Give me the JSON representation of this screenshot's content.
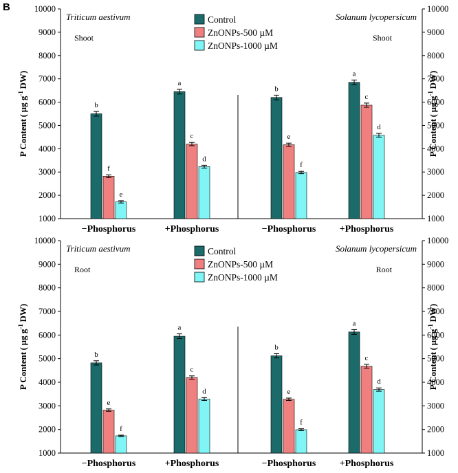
{
  "figure": {
    "panel_label": "B"
  },
  "colors": {
    "Control": "#1b6b6b",
    "ZnONPs-500 µM": "#f08080",
    "ZnONPs-1000 µM": "#7ff5f5"
  },
  "chart_data": [
    {
      "type": "bar",
      "title": "Shoot",
      "organ": "Shoot",
      "species": [
        "Triticum aestivum",
        "Solanum lycopersicum"
      ],
      "categories": [
        "−Phosphorus",
        "+Phosphorus",
        "−Phosphorus",
        "+Phosphorus"
      ],
      "ylabel": "P Content (µg g⁻¹ DW)",
      "ylabel_parts": {
        "main": "P Content ( µg g",
        "sup": "-1",
        "tail": " DW)"
      },
      "ylim": [
        1000,
        10000
      ],
      "yticks": [
        1000,
        2000,
        3000,
        4000,
        5000,
        6000,
        7000,
        8000,
        9000,
        10000
      ],
      "legend": [
        "Control",
        "ZnONPs-500 µM",
        "ZnONPs-1000 µM"
      ],
      "series": [
        {
          "name": "Control",
          "values": [
            5500,
            6450,
            6200,
            6850
          ],
          "errors": [
            100,
            100,
            100,
            100
          ],
          "labels": [
            "b",
            "a",
            "b",
            "a"
          ]
        },
        {
          "name": "ZnONPs-500 µM",
          "values": [
            2820,
            4200,
            4170,
            5870
          ],
          "errors": [
            60,
            70,
            70,
            90
          ],
          "labels": [
            "f",
            "c",
            "e",
            "c"
          ]
        },
        {
          "name": "ZnONPs-1000 µM",
          "values": [
            1720,
            3230,
            2980,
            4580
          ],
          "errors": [
            50,
            60,
            50,
            80
          ],
          "labels": [
            "e",
            "d",
            "f",
            "d"
          ]
        }
      ]
    },
    {
      "type": "bar",
      "title": "Root",
      "organ": "Root",
      "species": [
        "Triticum aestivum",
        "Solanum lycopersicum"
      ],
      "categories": [
        "−Phosphorus",
        "+Phosphorus",
        "−Phosphorus",
        "+Phosphorus"
      ],
      "ylabel": "P Content (µg g⁻¹ DW)",
      "ylabel_parts": {
        "main": "P Content ( µg g",
        "sup": "-1",
        "tail": " DW)"
      },
      "ylim": [
        1000,
        10000
      ],
      "yticks": [
        1000,
        2000,
        3000,
        4000,
        5000,
        6000,
        7000,
        8000,
        9000,
        10000
      ],
      "legend": [
        "Control",
        "ZnONPs-500 µM",
        "ZnONPs-1000 µM"
      ],
      "series": [
        {
          "name": "Control",
          "values": [
            4820,
            5950,
            5120,
            6130
          ],
          "errors": [
            90,
            100,
            90,
            100
          ],
          "labels": [
            "b",
            "a",
            "b",
            "a"
          ]
        },
        {
          "name": "ZnONPs-500 µM",
          "values": [
            2820,
            4200,
            3280,
            4680
          ],
          "errors": [
            50,
            70,
            50,
            80
          ],
          "labels": [
            "e",
            "c",
            "e",
            "c"
          ]
        },
        {
          "name": "ZnONPs-1000 µM",
          "values": [
            1730,
            3290,
            1990,
            3690
          ],
          "errors": [
            30,
            60,
            40,
            70
          ],
          "labels": [
            "f",
            "d",
            "f",
            "d"
          ]
        }
      ]
    }
  ]
}
